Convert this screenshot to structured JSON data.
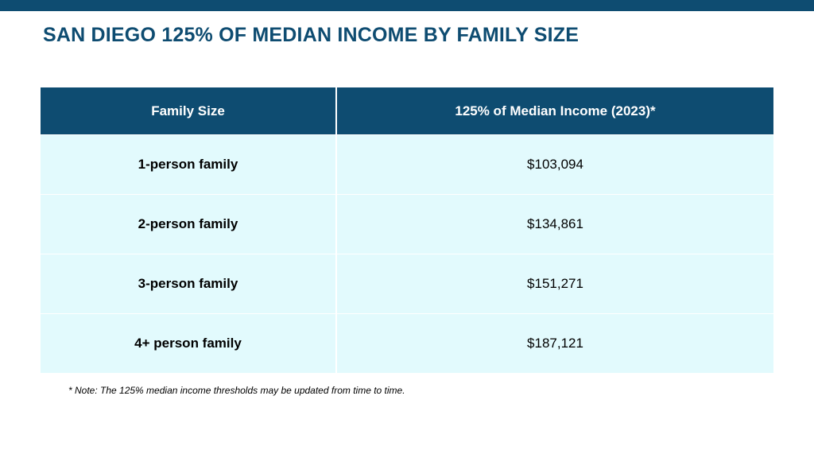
{
  "title": "SAN DIEGO 125% OF MEDIAN INCOME BY FAMILY SIZE",
  "colors": {
    "accent": "#0e4c71",
    "row_background": "#e2fafd"
  },
  "table": {
    "headers": [
      "Family Size",
      "125% of Median Income (2023)*"
    ],
    "rows": [
      {
        "family_size": "1-person family",
        "income": "$103,094"
      },
      {
        "family_size": "2-person family",
        "income": "$134,861"
      },
      {
        "family_size": "3-person family",
        "income": "$151,271"
      },
      {
        "family_size": "4+ person family",
        "income": "$187,121"
      }
    ]
  },
  "note": "* Note: The 125% median income thresholds may be updated from time to time."
}
